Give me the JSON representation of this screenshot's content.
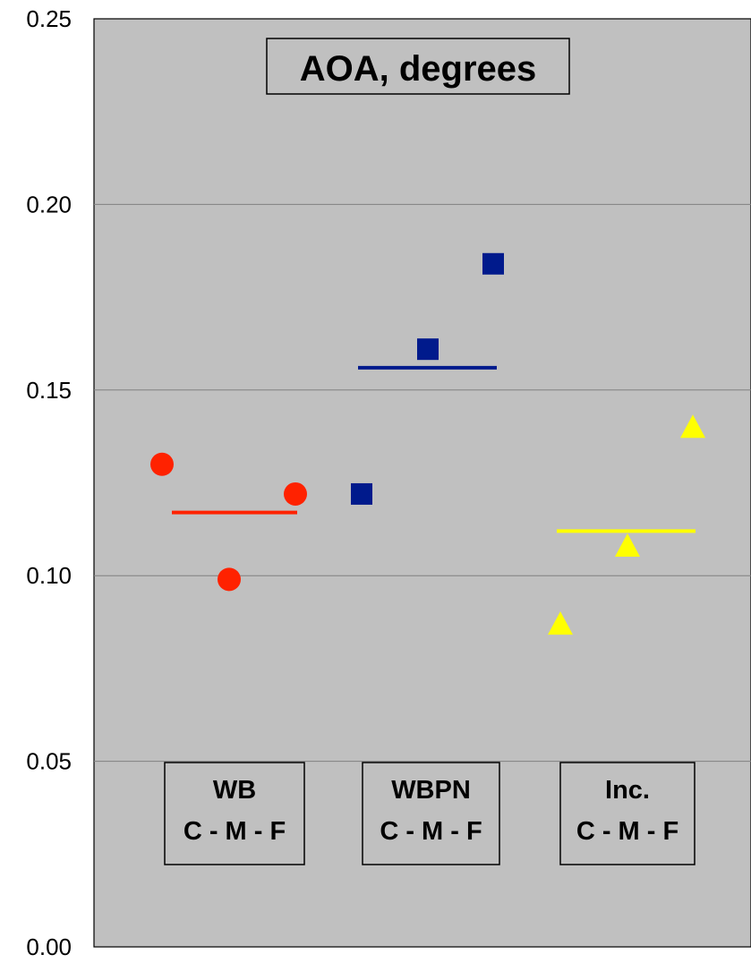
{
  "chart_data": {
    "type": "scatter",
    "title": "AOA, degrees",
    "ylim": [
      0,
      0.25
    ],
    "y_ticks": [
      "0.00",
      "0.05",
      "0.10",
      "0.15",
      "0.20",
      "0.25"
    ],
    "grid": true,
    "plot_background": "#c0c0c0",
    "groups": [
      {
        "label_line1": "WB",
        "label_line2": "C - M - F",
        "color": "#ff2200",
        "marker": "circle",
        "points": [
          {
            "x": "C",
            "y": 0.13
          },
          {
            "x": "M",
            "y": 0.099
          },
          {
            "x": "F",
            "y": 0.122
          }
        ],
        "mean": 0.117
      },
      {
        "label_line1": "WBPN",
        "label_line2": "C - M - F",
        "color": "#001a8c",
        "marker": "square",
        "points": [
          {
            "x": "C",
            "y": 0.122
          },
          {
            "x": "M",
            "y": 0.161
          },
          {
            "x": "F",
            "y": 0.184
          }
        ],
        "mean": 0.156
      },
      {
        "label_line1": "Inc.",
        "label_line2": "C - M - F",
        "color": "#ffff00",
        "marker": "triangle",
        "points": [
          {
            "x": "C",
            "y": 0.087
          },
          {
            "x": "M",
            "y": 0.108
          },
          {
            "x": "F",
            "y": 0.14
          }
        ],
        "mean": 0.112
      }
    ]
  }
}
